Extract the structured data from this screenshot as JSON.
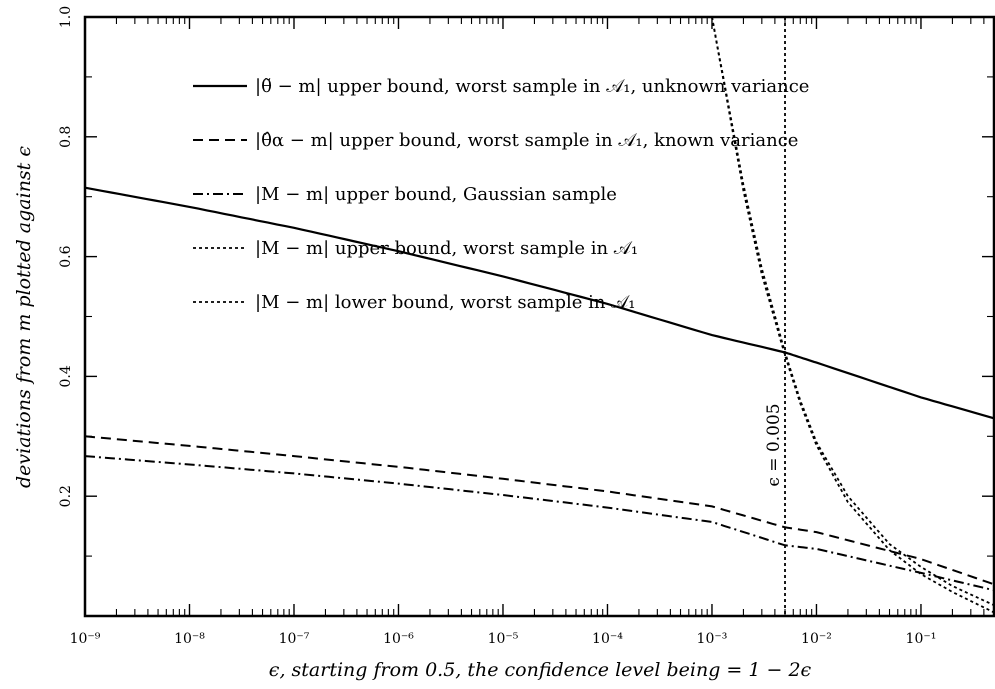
{
  "chart_data": {
    "type": "line",
    "title": "",
    "xlabel": "ϵ, starting from 0.5, the confidence level being = 1 − 2ϵ",
    "ylabel": "deviations from m plotted against ϵ",
    "x_scale": "log",
    "xlim": [
      1e-09,
      0.5
    ],
    "ylim": [
      0.0,
      1.0
    ],
    "x_ticks": [
      {
        "value": 1e-09,
        "label": "10⁻⁹"
      },
      {
        "value": 1e-08,
        "label": "10⁻⁸"
      },
      {
        "value": 1e-07,
        "label": "10⁻⁷"
      },
      {
        "value": 1e-06,
        "label": "10⁻⁶"
      },
      {
        "value": 1e-05,
        "label": "10⁻⁵"
      },
      {
        "value": 0.0001,
        "label": "10⁻⁴"
      },
      {
        "value": 0.001,
        "label": "10⁻³"
      },
      {
        "value": 0.01,
        "label": "10⁻²"
      },
      {
        "value": 0.1,
        "label": "10⁻¹"
      }
    ],
    "y_ticks": [
      {
        "value": 0.2,
        "label": "0.2"
      },
      {
        "value": 0.4,
        "label": "0.4"
      },
      {
        "value": 0.6,
        "label": "0.6"
      },
      {
        "value": 0.8,
        "label": "0.8"
      },
      {
        "value": 1.0,
        "label": "1.0"
      }
    ],
    "legend_position": "top-left",
    "grid": false,
    "series": [
      {
        "name": "|θ̃ − m| upper bound, worst sample in 𝒜₁, unknown variance",
        "style": "solid",
        "x": [
          1e-09,
          1e-08,
          1e-07,
          1e-06,
          1e-05,
          0.0001,
          0.001,
          0.005,
          0.01,
          0.1,
          0.5
        ],
        "y": [
          0.715,
          0.683,
          0.648,
          0.609,
          0.567,
          0.521,
          0.469,
          0.44,
          0.423,
          0.365,
          0.33
        ]
      },
      {
        "name": "|θ̂α − m| upper bound, worst sample in 𝒜₁, known variance",
        "style": "dashed",
        "x": [
          1e-09,
          1e-08,
          1e-07,
          1e-06,
          1e-05,
          0.0001,
          0.001,
          0.005,
          0.01,
          0.1,
          0.5
        ],
        "y": [
          0.3,
          0.284,
          0.267,
          0.249,
          0.229,
          0.208,
          0.183,
          0.148,
          0.14,
          0.095,
          0.053
        ]
      },
      {
        "name": "|M − m| upper bound, Gaussian sample",
        "style": "dashdot",
        "x": [
          1e-09,
          1e-08,
          1e-07,
          1e-06,
          1e-05,
          0.0001,
          0.001,
          0.005,
          0.01,
          0.1,
          0.5
        ],
        "y": [
          0.267,
          0.253,
          0.238,
          0.221,
          0.202,
          0.181,
          0.157,
          0.118,
          0.112,
          0.072,
          0.043
        ]
      },
      {
        "name": "|M − m| upper bound, worst sample in 𝒜₁",
        "style": "dotted",
        "x": [
          0.001,
          0.002,
          0.003,
          0.005,
          0.007,
          0.01,
          0.02,
          0.05,
          0.1,
          0.2,
          0.5
        ],
        "y": [
          1.0,
          0.72,
          0.58,
          0.44,
          0.36,
          0.29,
          0.2,
          0.12,
          0.082,
          0.05,
          0.018
        ]
      },
      {
        "name": "|M − m| lower bound, worst sample in 𝒜₁",
        "style": "dotted",
        "x": [
          0.001,
          0.002,
          0.003,
          0.005,
          0.007,
          0.01,
          0.02,
          0.05,
          0.1,
          0.2,
          0.5
        ],
        "y": [
          1.0,
          0.71,
          0.57,
          0.435,
          0.355,
          0.285,
          0.19,
          0.11,
          0.07,
          0.04,
          0.006
        ]
      }
    ],
    "annotations": [
      {
        "type": "vline",
        "x": 0.005,
        "style": "dotted",
        "label": "ϵ = 0.005"
      }
    ]
  }
}
